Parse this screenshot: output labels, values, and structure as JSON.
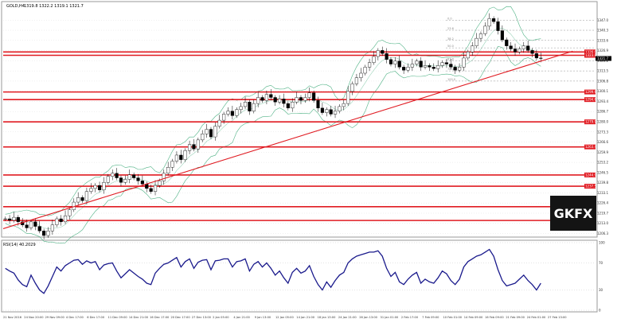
{
  "header": {
    "symbol": "GOLD,H4",
    "ohlc": "1319.8 1322.2 1319.1 1321.7"
  },
  "brand": {
    "logo_text": "GKFX",
    "color": "#e01b22"
  },
  "colors": {
    "price": "#000000",
    "bands": "#3caa78",
    "levels": "#e01b22",
    "trendline": "#e01b22",
    "rsi": "#1a1a8c",
    "grid": "#d8d8d8",
    "current_price_bg": "#000000",
    "fib_label_bg": "#f0b060",
    "green_label_bg": "#18b418"
  },
  "chart_data": [
    {
      "type": "candlestick",
      "panel": "price",
      "symbol": "GOLD,H4",
      "ylim": [
        1205,
        1355
      ],
      "y_ticks": [
        "1347.0",
        "1340.3",
        "1333.6",
        "1326.9",
        "1320.2",
        "1313.5",
        "1306.8",
        "1300.1",
        "1293.4",
        "1286.7",
        "1280.0",
        "1273.3",
        "1266.6",
        "1259.9",
        "1253.2",
        "1246.5",
        "1239.8",
        "1233.1",
        "1226.4",
        "1219.7",
        "1213.0",
        "1206.3"
      ],
      "current_price": "1321.7",
      "horizontal_levels": [
        {
          "value": 1326.0,
          "label": "1326.0"
        },
        {
          "value": 1323.8,
          "label": "1323.8"
        },
        {
          "value": 1299.6,
          "label": "1299.6"
        },
        {
          "value": 1294.6,
          "label": "1294.6"
        },
        {
          "value": 1279.9,
          "label": "1279.9"
        },
        {
          "value": 1263.4,
          "label": "1263.4"
        },
        {
          "value": 1244.9,
          "label": "1244.9"
        },
        {
          "value": 1237.5,
          "label": "1237.5"
        },
        {
          "value": 1224.0,
          "label": "1224.0"
        },
        {
          "value": 1214.9,
          "label": "1214.9"
        }
      ],
      "fib_levels": [
        {
          "value": 1347.0,
          "label": "0.0"
        },
        {
          "value": 1340.3,
          "label": "23.6"
        },
        {
          "value": 1333.6,
          "label": "38.2"
        },
        {
          "value": 1328.7,
          "label": "50.0"
        },
        {
          "value": 1320.2,
          "label": "61.8"
        },
        {
          "value": 1313.5,
          "label": "76.4"
        },
        {
          "value": 1306.8,
          "label": "100.0"
        }
      ],
      "trendline": {
        "from": [
          "21 Nov 2016",
          1209.5
        ],
        "to": [
          "27 Feb 13:00",
          1326.5
        ]
      },
      "series": [
        {
          "name": "GOLD,H4",
          "close": [
            1216,
            1215,
            1217,
            1214,
            1212,
            1210,
            1214,
            1211,
            1208,
            1205,
            1208,
            1212,
            1216,
            1214,
            1218,
            1222,
            1227,
            1230,
            1228,
            1234,
            1236,
            1238,
            1235,
            1240,
            1244,
            1246,
            1243,
            1240,
            1242,
            1245,
            1243,
            1241,
            1239,
            1236,
            1234,
            1238,
            1241,
            1246,
            1250,
            1254,
            1258,
            1255,
            1261,
            1265,
            1262,
            1268,
            1272,
            1275,
            1270,
            1277,
            1281,
            1285,
            1287,
            1284,
            1288,
            1290,
            1293,
            1287,
            1292,
            1296,
            1294,
            1298,
            1296,
            1293,
            1295,
            1292,
            1289,
            1293,
            1296,
            1294,
            1296,
            1299,
            1294,
            1289,
            1286,
            1288,
            1285,
            1287,
            1290,
            1292,
            1300,
            1305,
            1309,
            1312,
            1316,
            1319,
            1323,
            1327,
            1325,
            1321,
            1318,
            1320,
            1316,
            1314,
            1316,
            1318,
            1320,
            1316,
            1317,
            1316,
            1315,
            1317,
            1319,
            1318,
            1316,
            1314,
            1316,
            1322,
            1326,
            1330,
            1335,
            1338,
            1343,
            1348,
            1346,
            1340,
            1334,
            1330,
            1328,
            1326,
            1328,
            1330,
            1327,
            1325,
            1322,
            1321.7
          ]
        }
      ],
      "x_tick_labels": [
        "21 Nov 2016",
        "24 Nov 20:00",
        "29 Nov 09:00",
        "4 Dec 17:00",
        "6 Dec 17:00",
        "11 Dec 09:00",
        "14 Dec 21:00",
        "16 Dec 17:00",
        "20 Dec 17:00",
        "27 Dec 13:00",
        "2 Jan 05:00",
        "4 Jan 21:00",
        "9 Jan 13:00",
        "12 Jan 05:00",
        "14 Jan 21:00",
        "18 Jan 13:00",
        "24 Jan 21:00",
        "26 Jan 13:00",
        "31 Jan 01:00",
        "2 Feb 17:00",
        "7 Feb 09:00",
        "10 Feb 01:00",
        "14 Feb 09:00",
        "16 Feb 09:00",
        "21 Feb 09:00",
        "24 Feb 01:00",
        "27 Feb 13:00"
      ]
    },
    {
      "type": "line",
      "panel": "oscillator",
      "title": "RSI(14) 40.2029",
      "ylim": [
        0,
        100
      ],
      "y_ticks": [
        "100",
        "70",
        "30",
        "0"
      ],
      "series": [
        {
          "name": "RSI(14)",
          "values": [
            62,
            58,
            55,
            45,
            38,
            35,
            52,
            40,
            30,
            25,
            36,
            50,
            64,
            58,
            66,
            70,
            74,
            75,
            68,
            73,
            70,
            72,
            60,
            67,
            69,
            70,
            58,
            48,
            54,
            60,
            55,
            50,
            46,
            40,
            38,
            55,
            62,
            68,
            70,
            74,
            78,
            64,
            72,
            76,
            62,
            71,
            74,
            75,
            60,
            73,
            74,
            76,
            76,
            64,
            72,
            73,
            76,
            58,
            68,
            72,
            64,
            70,
            62,
            52,
            58,
            48,
            40,
            56,
            62,
            55,
            58,
            66,
            50,
            38,
            30,
            42,
            34,
            44,
            52,
            56,
            70,
            76,
            80,
            82,
            84,
            86,
            86,
            88,
            80,
            62,
            50,
            56,
            42,
            38,
            46,
            52,
            56,
            40,
            46,
            42,
            40,
            48,
            58,
            54,
            44,
            38,
            46,
            64,
            72,
            76,
            80,
            82,
            86,
            90,
            80,
            60,
            44,
            36,
            38,
            40,
            46,
            52,
            44,
            38,
            30,
            40
          ]
        }
      ]
    }
  ]
}
